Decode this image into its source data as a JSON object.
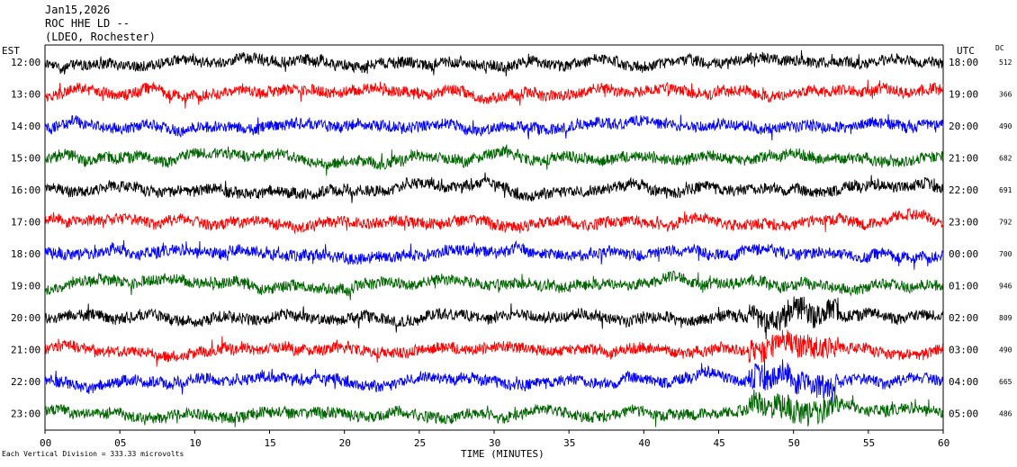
{
  "header": {
    "line1": "Jan15,2026",
    "line2": "ROC HHE LD --",
    "line3": "(LDEO, Rochester)"
  },
  "footer": {
    "scale_note": "Each Vertical Division =  333.33 microvolts"
  },
  "chart_data": {
    "type": "line",
    "title": "",
    "xlabel": "TIME (MINUTES)",
    "left_axis_title": "EST",
    "right_axis_title": "UTC",
    "dc_title": "DC",
    "xlim": [
      0,
      60
    ],
    "x_ticks": [
      "00",
      "05",
      "10",
      "15",
      "20",
      "25",
      "30",
      "35",
      "40",
      "45",
      "50",
      "55",
      "60"
    ],
    "colors": [
      "#000000",
      "#ff0000",
      "#0000ff",
      "#006400"
    ],
    "traces": [
      {
        "est": "12:00",
        "utc": "18:00",
        "dc": "512"
      },
      {
        "est": "13:00",
        "utc": "19:00",
        "dc": "366"
      },
      {
        "est": "14:00",
        "utc": "20:00",
        "dc": "490"
      },
      {
        "est": "15:00",
        "utc": "21:00",
        "dc": "682"
      },
      {
        "est": "16:00",
        "utc": "22:00",
        "dc": "691"
      },
      {
        "est": "17:00",
        "utc": "23:00",
        "dc": "792"
      },
      {
        "est": "18:00",
        "utc": "00:00",
        "dc": "700"
      },
      {
        "est": "19:00",
        "utc": "01:00",
        "dc": "946"
      },
      {
        "est": "20:00",
        "utc": "02:00",
        "dc": "809"
      },
      {
        "est": "21:00",
        "utc": "03:00",
        "dc": "490"
      },
      {
        "est": "22:00",
        "utc": "04:00",
        "dc": "665"
      },
      {
        "est": "23:00",
        "utc": "05:00",
        "dc": "486"
      }
    ]
  }
}
